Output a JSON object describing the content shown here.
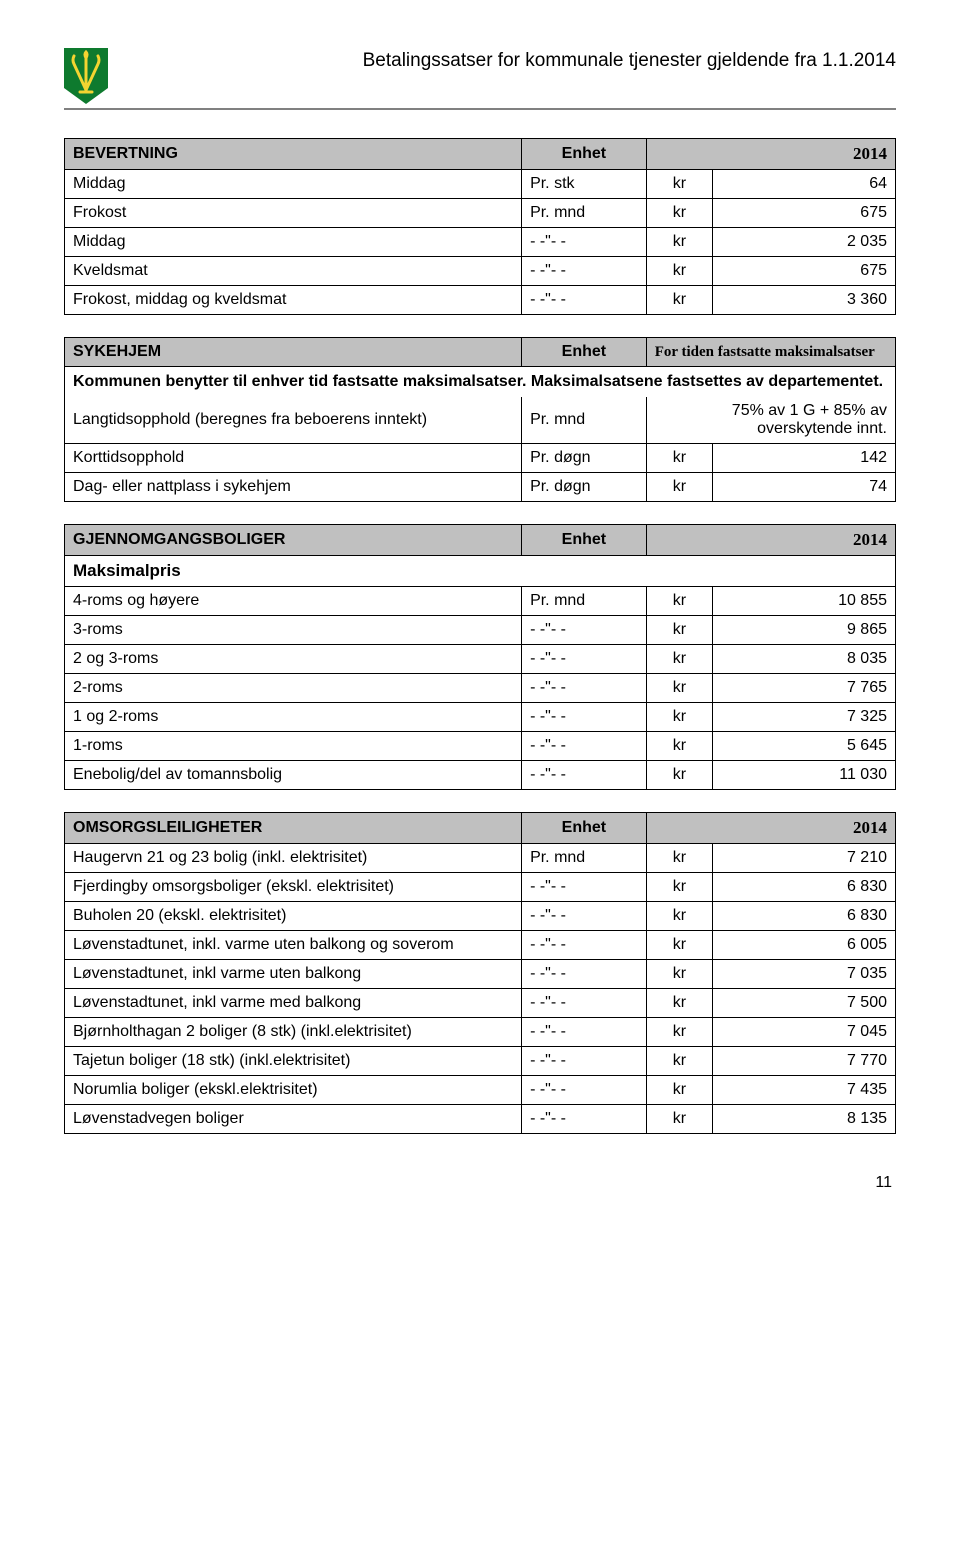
{
  "header": {
    "doc_title": "Betalingssatser  for kommunale tjenester gjeldende fra 1.1.2014",
    "logo": {
      "bg": "#0e7a2e",
      "fg": "#f3d431"
    }
  },
  "tables": {
    "bevertning": {
      "title": "BEVERTNING",
      "unit_header": "Enhet",
      "year": "2014",
      "rows": [
        {
          "label": "Middag",
          "unit": "Pr. stk",
          "cur": "kr",
          "val": "64"
        },
        {
          "label": "Frokost",
          "unit": "Pr. mnd",
          "cur": "kr",
          "val": "675"
        },
        {
          "label": "Middag",
          "unit": "- -\"- -",
          "cur": "kr",
          "val": "2 035"
        },
        {
          "label": "Kveldsmat",
          "unit": "- -\"- -",
          "cur": "kr",
          "val": "675"
        },
        {
          "label": "Frokost, middag og kveldsmat",
          "unit": "- -\"- -",
          "cur": "kr",
          "val": "3 360"
        }
      ]
    },
    "sykehjem": {
      "title": "SYKEHJEM",
      "unit_header": "Enhet",
      "note_header": "For tiden fastsatte maksimalsatser",
      "note": "Kommunen benytter til enhver tid fastsatte maksimalsatser. Maksimalsatsene fastsettes av departementet.",
      "langtid": {
        "label": "Langtidsopphold (beregnes fra beboerens inntekt)",
        "unit": "Pr. mnd",
        "val": "75% av 1 G + 85% av overskytende innt."
      },
      "rows": [
        {
          "label": "Korttidsopphold",
          "unit": "Pr. døgn",
          "cur": "kr",
          "val": "142"
        },
        {
          "label": "Dag- eller nattplass i sykehjem",
          "unit": "Pr. døgn",
          "cur": "kr",
          "val": "74"
        }
      ]
    },
    "gjennom": {
      "title": "GJENNOMGANGSBOLIGER",
      "unit_header": "Enhet",
      "year": "2014",
      "subhead": "Maksimalpris",
      "rows": [
        {
          "label": "4-roms og høyere",
          "unit": "Pr. mnd",
          "cur": "kr",
          "val": "10 855"
        },
        {
          "label": "3-roms",
          "unit": "- -\"- -",
          "cur": "kr",
          "val": "9 865"
        },
        {
          "label": "2 og 3-roms",
          "unit": "- -\"- -",
          "cur": "kr",
          "val": "8 035"
        },
        {
          "label": "2-roms",
          "unit": "- -\"- -",
          "cur": "kr",
          "val": "7 765"
        },
        {
          "label": "1 og 2-roms",
          "unit": "- -\"- -",
          "cur": "kr",
          "val": "7 325"
        },
        {
          "label": "1-roms",
          "unit": "- -\"- -",
          "cur": "kr",
          "val": "5 645"
        },
        {
          "label": "Enebolig/del av tomannsbolig",
          "unit": "- -\"- -",
          "cur": "kr",
          "val": "11 030"
        }
      ]
    },
    "omsorg": {
      "title": "OMSORGSLEILIGHETER",
      "unit_header": "Enhet",
      "year": "2014",
      "rows": [
        {
          "label": "Haugervn 21 og 23 bolig (inkl. elektrisitet)",
          "unit": "Pr. mnd",
          "cur": "kr",
          "val": "7 210"
        },
        {
          "label": "Fjerdingby omsorgsboliger (ekskl. elektrisitet)",
          "unit": "- -\"- -",
          "cur": "kr",
          "val": "6 830"
        },
        {
          "label": "Buholen 20 (ekskl. elektrisitet)",
          "unit": "- -\"- -",
          "cur": "kr",
          "val": "6 830"
        },
        {
          "label": "Løvenstadtunet, inkl. varme uten balkong og soverom",
          "unit": "- -\"- -",
          "cur": "kr",
          "val": "6 005"
        },
        {
          "label": "Løvenstadtunet, inkl varme uten balkong",
          "unit": "- -\"- -",
          "cur": "kr",
          "val": "7 035"
        },
        {
          "label": "Løvenstadtunet, inkl varme med balkong",
          "unit": "- -\"- -",
          "cur": "kr",
          "val": "7 500"
        },
        {
          "label": "Bjørnholthagan 2 boliger (8 stk) (inkl.elektrisitet)",
          "unit": "- -\"- -",
          "cur": "kr",
          "val": "7 045"
        },
        {
          "label": "Tajetun boliger (18 stk) (inkl.elektrisitet)",
          "unit": "- -\"- -",
          "cur": "kr",
          "val": "7 770"
        },
        {
          "label": "Norumlia boliger (ekskl.elektrisitet)",
          "unit": "- -\"- -",
          "cur": "kr",
          "val": "7 435"
        },
        {
          "label": "Løvenstadvegen boliger",
          "unit": "- -\"- -",
          "cur": "kr",
          "val": "8 135"
        }
      ]
    }
  },
  "page_number": "11"
}
